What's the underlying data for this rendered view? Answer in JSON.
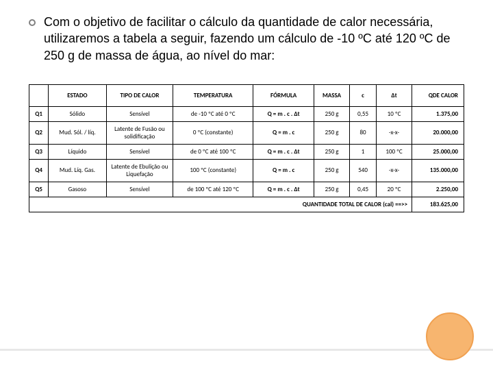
{
  "paragraph": "Com o objetivo de facilitar o cálculo da quantidade de calor necessária, utilizaremos a tabela a seguir, fazendo um cálculo de -10 ºC até 120 ºC de 250 g de massa de água, ao nível do mar:",
  "table": {
    "headers": [
      "",
      "ESTADO",
      "TIPO DE CALOR",
      "TEMPERATURA",
      "FÓRMULA",
      "MASSA",
      "c",
      "Δt",
      "QDE CALOR"
    ],
    "rows": [
      {
        "q": "Q1",
        "estado": "Sólido",
        "tipo": "Sensível",
        "temp": "de -10 ºC até 0 ºC",
        "formula": "Q = m . c . Δt",
        "massa": "250 g",
        "c": "0,55",
        "dt": "10 ºC",
        "qde": "1.375,00"
      },
      {
        "q": "Q2",
        "estado": "Mud. Sól. / líq.",
        "tipo": "Latente de Fusão ou solidificação",
        "temp": "0 ºC (constante)",
        "formula": "Q = m . c",
        "massa": "250 g",
        "c": "80",
        "dt": "-x-x-",
        "qde": "20.000,00"
      },
      {
        "q": "Q3",
        "estado": "Líquido",
        "tipo": "Sensível",
        "temp": "de 0 ºC até 100 ºC",
        "formula": "Q = m . c . Δt",
        "massa": "250 g",
        "c": "1",
        "dt": "100 ºC",
        "qde": "25.000,00"
      },
      {
        "q": "Q4",
        "estado": "Mud. Líq. Gas.",
        "tipo": "Latente de Ebulição ou Liquefação",
        "temp": "100 ºC (constante)",
        "formula": "Q = m . c",
        "massa": "250 g",
        "c": "540",
        "dt": "-x-x-",
        "qde": "135.000,00"
      },
      {
        "q": "Q5",
        "estado": "Gasoso",
        "tipo": "Sensível",
        "temp": "de 100 ºC até 120 ºC",
        "formula": "Q = m . c . Δt",
        "massa": "250 g",
        "c": "0,45",
        "dt": "20 ºC",
        "qde": "2.250,00"
      }
    ],
    "total_label": "QUANTIDADE TOTAL DE CALOR (cal) ==>>",
    "total_value": "183.625,00",
    "border_color": "#000000",
    "header_bg": "#ffffff",
    "font_family": "Calibri",
    "header_fontsize": 9,
    "cell_fontsize": 9
  },
  "styling": {
    "slide_bg": "#ffffff",
    "bullet_border": "#808080",
    "paragraph_fontsize": 18,
    "paragraph_color": "#000000",
    "deco_circle_fill": "#f7b56f",
    "deco_circle_border": "#f0a050",
    "deco_line_color": "#e8e8e8"
  }
}
